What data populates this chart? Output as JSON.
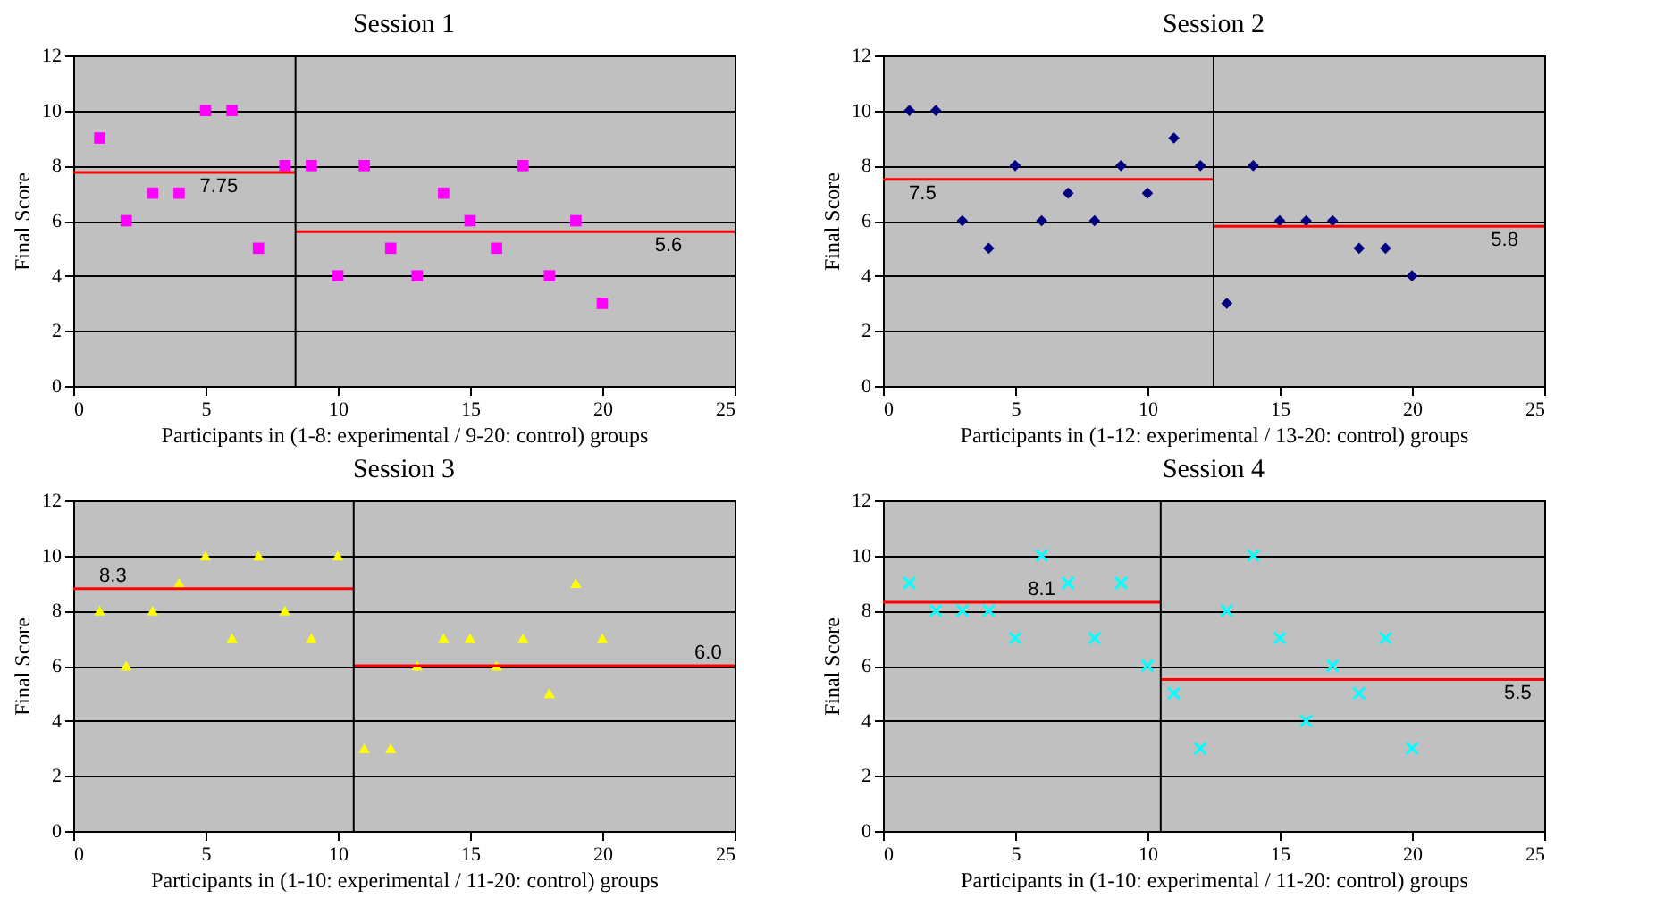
{
  "chart_data": [
    {
      "type": "scatter",
      "title": "Session 1",
      "xlabel": "Participants in (1-8: experimental / 9-20: control) groups",
      "ylabel": "Final Score",
      "marker": "square",
      "grid": "y",
      "xlim": [
        0,
        25
      ],
      "ylim": [
        0,
        12
      ],
      "xticks": [
        0,
        5,
        10,
        15,
        20,
        25
      ],
      "yticks": [
        0,
        2,
        4,
        6,
        8,
        10,
        12
      ],
      "series": [
        {
          "color": "#ff00ff",
          "x": [
            1,
            2,
            3,
            4,
            5,
            6,
            7,
            8,
            9,
            10,
            11,
            12,
            13,
            14,
            15,
            16,
            17,
            18,
            19,
            20
          ],
          "values": [
            9,
            6,
            7,
            7,
            10,
            10,
            5,
            8,
            8,
            4,
            8,
            5,
            4,
            7,
            6,
            5,
            8,
            4,
            6,
            3
          ]
        },
        {
          "type": "line",
          "marker": "none",
          "color": "#ff0000",
          "x": [
            0,
            8.4
          ],
          "values": [
            7.75,
            7.75
          ]
        },
        {
          "type": "line",
          "marker": "none",
          "color": "#ff0000",
          "x": [
            8.4,
            25
          ],
          "values": [
            5.6,
            5.6
          ]
        }
      ],
      "ref_lines": [
        {
          "axis": "x",
          "value": 8.4,
          "color": "#000000"
        }
      ],
      "annotations": [
        {
          "text": "7.75",
          "x": 5.5,
          "y": 7.75
        },
        {
          "text": "5.6",
          "x": 22.5,
          "y": 5.6
        }
      ]
    },
    {
      "type": "scatter",
      "title": "Session 2",
      "xlabel": "Participants in (1-12: experimental / 13-20: control) groups",
      "ylabel": "Final Score",
      "marker": "diamond",
      "grid": "y",
      "xlim": [
        0,
        25
      ],
      "ylim": [
        0,
        12
      ],
      "xticks": [
        0,
        5,
        10,
        15,
        20,
        25
      ],
      "yticks": [
        0,
        2,
        4,
        6,
        8,
        10,
        12
      ],
      "series": [
        {
          "color": "#000080",
          "x": [
            1,
            2,
            3,
            4,
            5,
            6,
            7,
            8,
            9,
            10,
            11,
            12,
            13,
            14,
            15,
            16,
            17,
            18,
            19,
            20
          ],
          "values": [
            10,
            10,
            6,
            5,
            8,
            6,
            7,
            6,
            8,
            7,
            9,
            8,
            3,
            8,
            6,
            6,
            6,
            5,
            5,
            4
          ]
        },
        {
          "type": "line",
          "marker": "none",
          "color": "#ff0000",
          "x": [
            0,
            12.5
          ],
          "values": [
            7.5,
            7.5
          ]
        },
        {
          "type": "line",
          "marker": "none",
          "color": "#ff0000",
          "x": [
            12.5,
            25
          ],
          "values": [
            5.8,
            5.8
          ]
        }
      ],
      "ref_lines": [
        {
          "axis": "x",
          "value": 12.5,
          "color": "#000000"
        }
      ],
      "annotations": [
        {
          "text": "7.5",
          "x": 1.5,
          "y": 7.5
        },
        {
          "text": "5.8",
          "x": 23.5,
          "y": 5.8
        }
      ]
    },
    {
      "type": "scatter",
      "title": "Session 3",
      "xlabel": "Participants in (1-10: experimental / 11-20: control) groups",
      "ylabel": "Final Score",
      "marker": "triangle",
      "grid": "y",
      "xlim": [
        0,
        25
      ],
      "ylim": [
        0,
        12
      ],
      "xticks": [
        0,
        5,
        10,
        15,
        20,
        25
      ],
      "yticks": [
        0,
        2,
        4,
        6,
        8,
        10,
        12
      ],
      "series": [
        {
          "color": "#ffff00",
          "x": [
            1,
            2,
            3,
            4,
            5,
            6,
            7,
            8,
            9,
            10,
            11,
            12,
            13,
            14,
            15,
            16,
            17,
            18,
            19,
            20
          ],
          "values": [
            8,
            6,
            8,
            9,
            10,
            7,
            10,
            8,
            7,
            10,
            3,
            3,
            6,
            7,
            7,
            6,
            7,
            5,
            9,
            7
          ]
        },
        {
          "type": "line",
          "marker": "none",
          "color": "#ff0000",
          "x": [
            0,
            10.6
          ],
          "values": [
            8.8,
            8.8
          ]
        },
        {
          "type": "line",
          "marker": "none",
          "color": "#ff0000",
          "x": [
            10.6,
            25
          ],
          "values": [
            6.0,
            6.0
          ]
        }
      ],
      "ref_lines": [
        {
          "axis": "x",
          "value": 10.6,
          "color": "#000000"
        }
      ],
      "annotations": [
        {
          "text": "8.3",
          "x": 1.5,
          "y": 8.8
        },
        {
          "text": "6.0",
          "x": 24,
          "y": 6.0
        }
      ]
    },
    {
      "type": "scatter",
      "title": "Session 4",
      "xlabel": "Participants in (1-10: experimental / 11-20: control) groups",
      "ylabel": "Final Score",
      "marker": "cross",
      "grid": "y",
      "xlim": [
        0,
        25
      ],
      "ylim": [
        0,
        12
      ],
      "xticks": [
        0,
        5,
        10,
        15,
        20,
        25
      ],
      "yticks": [
        0,
        2,
        4,
        6,
        8,
        10,
        12
      ],
      "series": [
        {
          "color": "#00ffff",
          "x": [
            1,
            2,
            3,
            4,
            5,
            6,
            7,
            8,
            9,
            10,
            11,
            12,
            13,
            14,
            15,
            16,
            17,
            18,
            19,
            20
          ],
          "values": [
            9,
            8,
            8,
            8,
            7,
            10,
            9,
            7,
            9,
            6,
            5,
            3,
            8,
            10,
            7,
            4,
            6,
            5,
            7,
            3
          ]
        },
        {
          "type": "line",
          "marker": "none",
          "color": "#ff0000",
          "x": [
            0,
            10.5
          ],
          "values": [
            8.3,
            8.3
          ]
        },
        {
          "type": "line",
          "marker": "none",
          "color": "#ff0000",
          "x": [
            10.5,
            25
          ],
          "values": [
            5.5,
            5.5
          ]
        }
      ],
      "ref_lines": [
        {
          "axis": "x",
          "value": 10.5,
          "color": "#000000"
        }
      ],
      "annotations": [
        {
          "text": "8.1",
          "x": 6,
          "y": 8.3
        },
        {
          "text": "5.5",
          "x": 24,
          "y": 5.5
        }
      ]
    }
  ]
}
